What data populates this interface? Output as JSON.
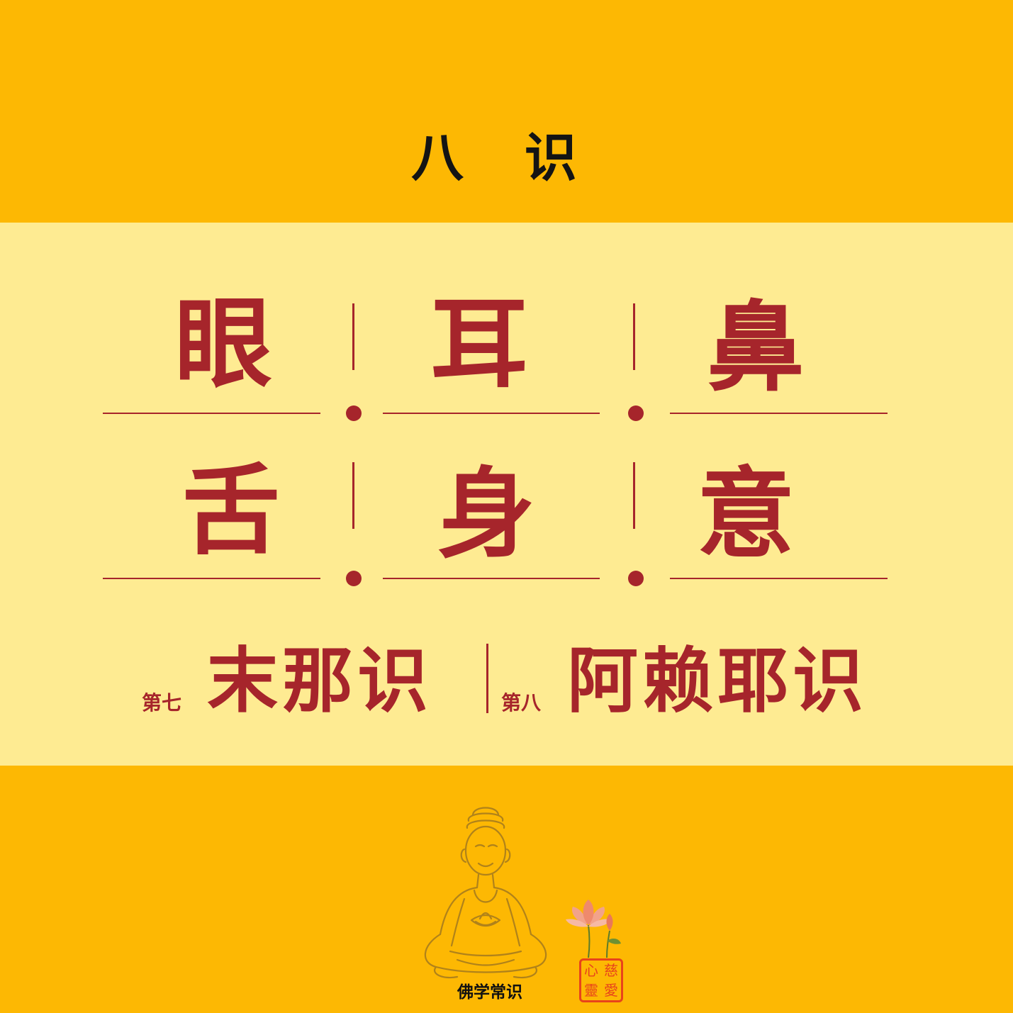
{
  "title": "八 识",
  "grid": {
    "row1": [
      "眼",
      "耳",
      "鼻"
    ],
    "row2": [
      "舌",
      "身",
      "意"
    ]
  },
  "seventh": {
    "ordinal": "第七",
    "name": "末那识"
  },
  "eighth": {
    "ordinal": "第八",
    "name": "阿赖耶识"
  },
  "footer": {
    "label": "佛学常识"
  },
  "seal": [
    "慈",
    "心",
    "愛",
    "靈"
  ],
  "colors": {
    "outer_band": "#FDB803",
    "inner_band": "#FEEB92",
    "accent_red": "#A6252B",
    "title_black": "#141414",
    "seal_red": "#E8431B"
  }
}
